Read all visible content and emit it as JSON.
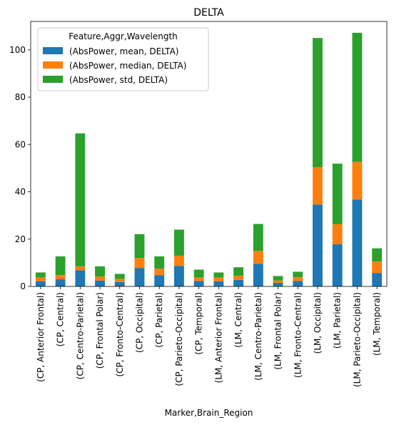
{
  "chart_data": {
    "type": "bar",
    "stacked": true,
    "title": "DELTA",
    "xlabel": "Marker,Brain_Region",
    "ylabel": "",
    "ylim": [
      0,
      112
    ],
    "yticks": [
      0,
      20,
      40,
      60,
      80,
      100
    ],
    "grid": false,
    "legend": {
      "title": "Feature,Aggr,Wavelength",
      "placement": "top-left"
    },
    "categories": [
      "(CP, Anterior Frontal)",
      "(CP, Central)",
      "(CP, Centro-Parietal)",
      "(CP, Frontal Polar)",
      "(CP, Fronto-Central)",
      "(CP, Occipital)",
      "(CP, Parietal)",
      "(CP, Parieto-Occipital)",
      "(CP, Temporal)",
      "(LM, Anterior Frontal)",
      "(LM, Central)",
      "(LM, Centro-Parietal)",
      "(LM, Frontal Polar)",
      "(LM, Fronto-Central)",
      "(LM, Occipital)",
      "(LM, Parietal)",
      "(LM, Parieto-Occipital)",
      "(LM, Temporal)"
    ],
    "series": [
      {
        "name": "(AbsPower, mean, DELTA)",
        "color": "#1f77b4",
        "values": [
          2.2,
          3.0,
          6.8,
          2.5,
          1.9,
          7.8,
          4.7,
          8.7,
          2.3,
          2.2,
          2.8,
          9.6,
          1.5,
          2.3,
          34.6,
          17.8,
          36.7,
          5.7
        ]
      },
      {
        "name": "(AbsPower, median, DELTA)",
        "color": "#ff7f0e",
        "values": [
          1.6,
          1.8,
          1.7,
          1.7,
          1.3,
          4.2,
          2.8,
          4.3,
          1.5,
          1.6,
          1.7,
          5.4,
          1.0,
          1.6,
          15.8,
          8.5,
          15.9,
          4.8
        ]
      },
      {
        "name": "(AbsPower, std, DELTA)",
        "color": "#2ca02c",
        "values": [
          2.1,
          7.9,
          56.2,
          4.3,
          2.1,
          10.1,
          5.2,
          11.0,
          3.3,
          2.1,
          3.6,
          11.4,
          1.9,
          2.3,
          54.6,
          25.6,
          54.6,
          5.6
        ]
      }
    ]
  }
}
